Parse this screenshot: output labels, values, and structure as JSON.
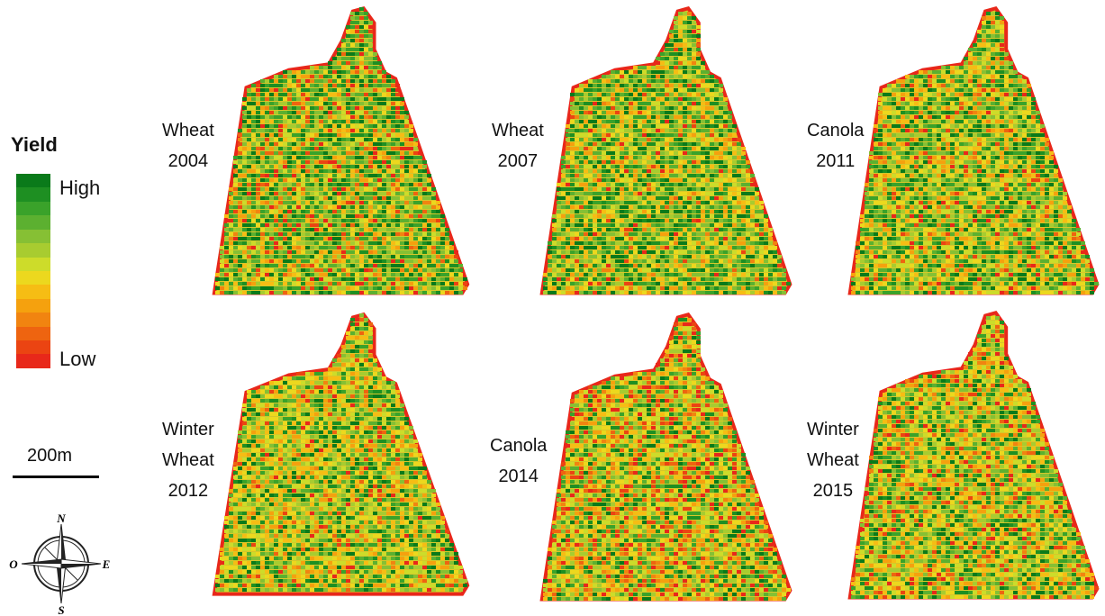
{
  "legend": {
    "title": "Yield",
    "high_label": "High",
    "low_label": "Low",
    "ramp": [
      "#0a7a1a",
      "#1e8f22",
      "#3aa22a",
      "#5cb030",
      "#86c034",
      "#a8cc30",
      "#cddc2a",
      "#ecd81e",
      "#f6bd14",
      "#f5a10e",
      "#f18410",
      "#ee6410",
      "#eb4412",
      "#e8281a"
    ]
  },
  "scale": {
    "label": "200m"
  },
  "compass": {
    "n": "N",
    "s": "S",
    "e": "E",
    "w": "O"
  },
  "panels": [
    {
      "line1": "Wheat",
      "line2": "2004",
      "green_share": 0.55,
      "red_share": 0.15
    },
    {
      "line1": "Wheat",
      "line2": "2007",
      "green_share": 0.55,
      "red_share": 0.06
    },
    {
      "line1": "Canola",
      "line2": "2011",
      "green_share": 0.5,
      "red_share": 0.1
    },
    {
      "line1": "Winter",
      "line2": "Wheat",
      "line3": "2012",
      "green_share": 0.4,
      "red_share": 0.08
    },
    {
      "line1": "Canola",
      "line2": "2014",
      "green_share": 0.35,
      "red_share": 0.22
    },
    {
      "line1": "Winter",
      "line2": "Wheat",
      "line3": "2015",
      "green_share": 0.38,
      "red_share": 0.14
    }
  ]
}
